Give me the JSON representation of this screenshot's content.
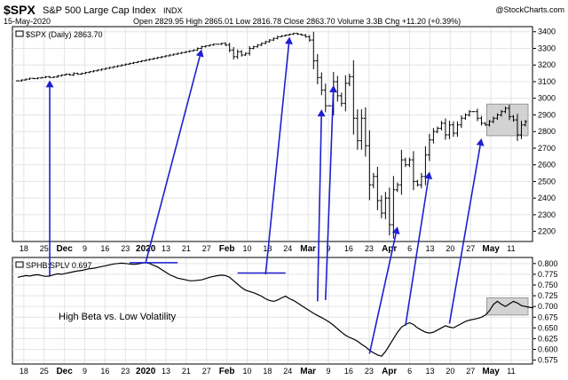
{
  "header": {
    "ticker": "$SPX",
    "name": "S&P 500 Large Cap Index",
    "exchange": "INDX",
    "date": "15-May-2020",
    "quote": "Open 2829.95 High 2865.01 Low 2816.78 Close 2863.70 Volume 3.3B Chg +11.20 (+0.39%)",
    "brand": "@StockCharts.com"
  },
  "colors": {
    "price_bars": "#000000",
    "arrows": "#1f1fd0",
    "highlight_box": "#cccccc",
    "grid": "#e4e4e4",
    "ratio_line": "#000000"
  },
  "chart_data": [
    {
      "type": "bar",
      "legend": "$SPX (Daily) 2863.70",
      "yticks": [
        "2200",
        "2300",
        "2400",
        "2500",
        "2600",
        "2700",
        "2800",
        "2900",
        "3000",
        "3100",
        "3200",
        "3300",
        "3400"
      ],
      "ylim": [
        2150,
        3420
      ],
      "xticks": [
        {
          "label": "18",
          "bold": false
        },
        {
          "label": "25",
          "bold": false
        },
        {
          "label": "Dec",
          "bold": true
        },
        {
          "label": "9",
          "bold": false
        },
        {
          "label": "16",
          "bold": false
        },
        {
          "label": "23",
          "bold": false
        },
        {
          "label": "2020",
          "bold": true
        },
        {
          "label": "13",
          "bold": false
        },
        {
          "label": "21",
          "bold": false
        },
        {
          "label": "27",
          "bold": false
        },
        {
          "label": "Feb",
          "bold": true
        },
        {
          "label": "10",
          "bold": false
        },
        {
          "label": "18",
          "bold": false
        },
        {
          "label": "24",
          "bold": false
        },
        {
          "label": "Mar",
          "bold": true
        },
        {
          "label": "9",
          "bold": false
        },
        {
          "label": "16",
          "bold": false
        },
        {
          "label": "23",
          "bold": false
        },
        {
          "label": "Apr",
          "bold": true
        },
        {
          "label": "6",
          "bold": false
        },
        {
          "label": "13",
          "bold": false
        },
        {
          "label": "20",
          "bold": false
        },
        {
          "label": "27",
          "bold": false
        },
        {
          "label": "May",
          "bold": true
        },
        {
          "label": "11",
          "bold": false
        }
      ],
      "series": [
        {
          "values": [
            3105,
            3110,
            3115,
            3120,
            3118,
            3122,
            3125,
            3130,
            3125,
            3128,
            3135,
            3140,
            3145,
            3140,
            3150,
            3145,
            3150,
            3155,
            3160,
            3165,
            3170,
            3175,
            3180,
            3185,
            3190,
            3195,
            3200,
            3205,
            3210,
            3215,
            3220,
            3225,
            3230,
            3235,
            3240,
            3245,
            3250,
            3255,
            3260,
            3265,
            3270,
            3275,
            3280,
            3285,
            3290,
            3300,
            3310,
            3315,
            3320,
            3325,
            3325,
            3330,
            3320,
            3290,
            3250,
            3280,
            3260,
            3270,
            3300,
            3310,
            3320,
            3330,
            3340,
            3350,
            3360,
            3370,
            3375,
            3380,
            3385,
            3390,
            3385,
            3380,
            3370,
            3350,
            3225,
            3125,
            3050,
            2955,
            2955,
            3100,
            3015,
            2970,
            3090,
            3130,
            2880,
            2745,
            2880,
            2715,
            2480,
            2530,
            2385,
            2310,
            2400,
            2240,
            2450,
            2480,
            2630,
            2600,
            2630,
            2500,
            2480,
            2530,
            2660,
            2750,
            2800,
            2820,
            2850,
            2780,
            2840,
            2790,
            2840,
            2880,
            2900,
            2920,
            2920,
            2880,
            2850,
            2840,
            2860,
            2880,
            2900,
            2920,
            2940,
            2890,
            2870,
            2780,
            2840,
            2860
          ]
        }
      ],
      "highlight": {
        "from_index": 118,
        "to_index": 127,
        "ylim": [
          2775,
          2965
        ]
      }
    },
    {
      "type": "line",
      "legend": "SPHB:SPLV 0.697",
      "yticks": [
        "0.575",
        "0.600",
        "0.625",
        "0.650",
        "0.675",
        "0.700",
        "0.725",
        "0.750",
        "0.775",
        "0.800"
      ],
      "ylim": [
        0.57,
        0.81
      ],
      "series": [
        {
          "values": [
            0.768,
            0.77,
            0.772,
            0.771,
            0.773,
            0.774,
            0.772,
            0.77,
            0.771,
            0.774,
            0.776,
            0.775,
            0.777,
            0.779,
            0.781,
            0.783,
            0.784,
            0.786,
            0.788,
            0.789,
            0.791,
            0.793,
            0.795,
            0.797,
            0.799,
            0.8,
            0.801,
            0.8,
            0.799,
            0.798,
            0.799,
            0.801,
            0.802,
            0.8,
            0.796,
            0.792,
            0.786,
            0.78,
            0.774,
            0.77,
            0.766,
            0.764,
            0.762,
            0.76,
            0.76,
            0.761,
            0.762,
            0.765,
            0.768,
            0.77,
            0.772,
            0.773,
            0.772,
            0.768,
            0.76,
            0.752,
            0.744,
            0.738,
            0.735,
            0.732,
            0.728,
            0.724,
            0.718,
            0.714,
            0.712,
            0.715,
            0.72,
            0.724,
            0.718,
            0.714,
            0.708,
            0.702,
            0.696,
            0.69,
            0.684,
            0.679,
            0.674,
            0.669,
            0.663,
            0.656,
            0.648,
            0.64,
            0.633,
            0.628,
            0.624,
            0.619,
            0.612,
            0.606,
            0.598,
            0.592,
            0.587,
            0.584,
            0.595,
            0.61,
            0.625,
            0.64,
            0.652,
            0.658,
            0.662,
            0.658,
            0.65,
            0.645,
            0.64,
            0.638,
            0.64,
            0.645,
            0.65,
            0.655,
            0.652,
            0.65,
            0.655,
            0.66,
            0.665,
            0.668,
            0.67,
            0.672,
            0.675,
            0.68,
            0.69,
            0.705,
            0.712,
            0.705,
            0.7,
            0.706,
            0.712,
            0.708,
            0.702,
            0.7,
            0.698,
            0.697
          ]
        }
      ],
      "highlight": {
        "from_index": 118,
        "to_index": 127,
        "ylim": [
          0.68,
          0.72
        ]
      },
      "annotation": "High Beta vs. Low Volatility",
      "xticks": [
        {
          "label": "18",
          "bold": false
        },
        {
          "label": "25",
          "bold": false
        },
        {
          "label": "Dec",
          "bold": true
        },
        {
          "label": "9",
          "bold": false
        },
        {
          "label": "16",
          "bold": false
        },
        {
          "label": "23",
          "bold": false
        },
        {
          "label": "2020",
          "bold": true
        },
        {
          "label": "13",
          "bold": false
        },
        {
          "label": "21",
          "bold": false
        },
        {
          "label": "27",
          "bold": false
        },
        {
          "label": "Feb",
          "bold": true
        },
        {
          "label": "10",
          "bold": false
        },
        {
          "label": "18",
          "bold": false
        },
        {
          "label": "24",
          "bold": false
        },
        {
          "label": "Mar",
          "bold": true
        },
        {
          "label": "9",
          "bold": false
        },
        {
          "label": "16",
          "bold": false
        },
        {
          "label": "23",
          "bold": false
        },
        {
          "label": "Apr",
          "bold": true
        },
        {
          "label": "6",
          "bold": false
        },
        {
          "label": "13",
          "bold": false
        },
        {
          "label": "20",
          "bold": false
        },
        {
          "label": "27",
          "bold": false
        },
        {
          "label": "May",
          "bold": true
        },
        {
          "label": "11",
          "bold": false
        }
      ],
      "level_marks": [
        {
          "from_index": 28,
          "to_index": 40,
          "value": 0.802
        },
        {
          "from_index": 55,
          "to_index": 67,
          "value": 0.778
        }
      ]
    }
  ],
  "divergence_links": [
    {
      "from_index": 8,
      "from_value": 0.772,
      "to_index": 8,
      "to_value": 3130
    },
    {
      "from_index": 32,
      "from_value": 0.802,
      "to_index": 46,
      "to_value": 3315
    },
    {
      "from_index": 62,
      "from_value": 0.775,
      "to_index": 68,
      "to_value": 3390
    },
    {
      "from_index": 75,
      "from_value": 0.712,
      "to_index": 76,
      "to_value": 2955
    },
    {
      "from_index": 77,
      "from_value": 0.715,
      "to_index": 79,
      "to_value": 3100
    },
    {
      "from_index": 88,
      "from_value": 0.59,
      "to_index": 95,
      "to_value": 2250
    },
    {
      "from_index": 97,
      "from_value": 0.655,
      "to_index": 103,
      "to_value": 2580
    },
    {
      "from_index": 108,
      "from_value": 0.66,
      "to_index": 116,
      "to_value": 2780
    }
  ]
}
